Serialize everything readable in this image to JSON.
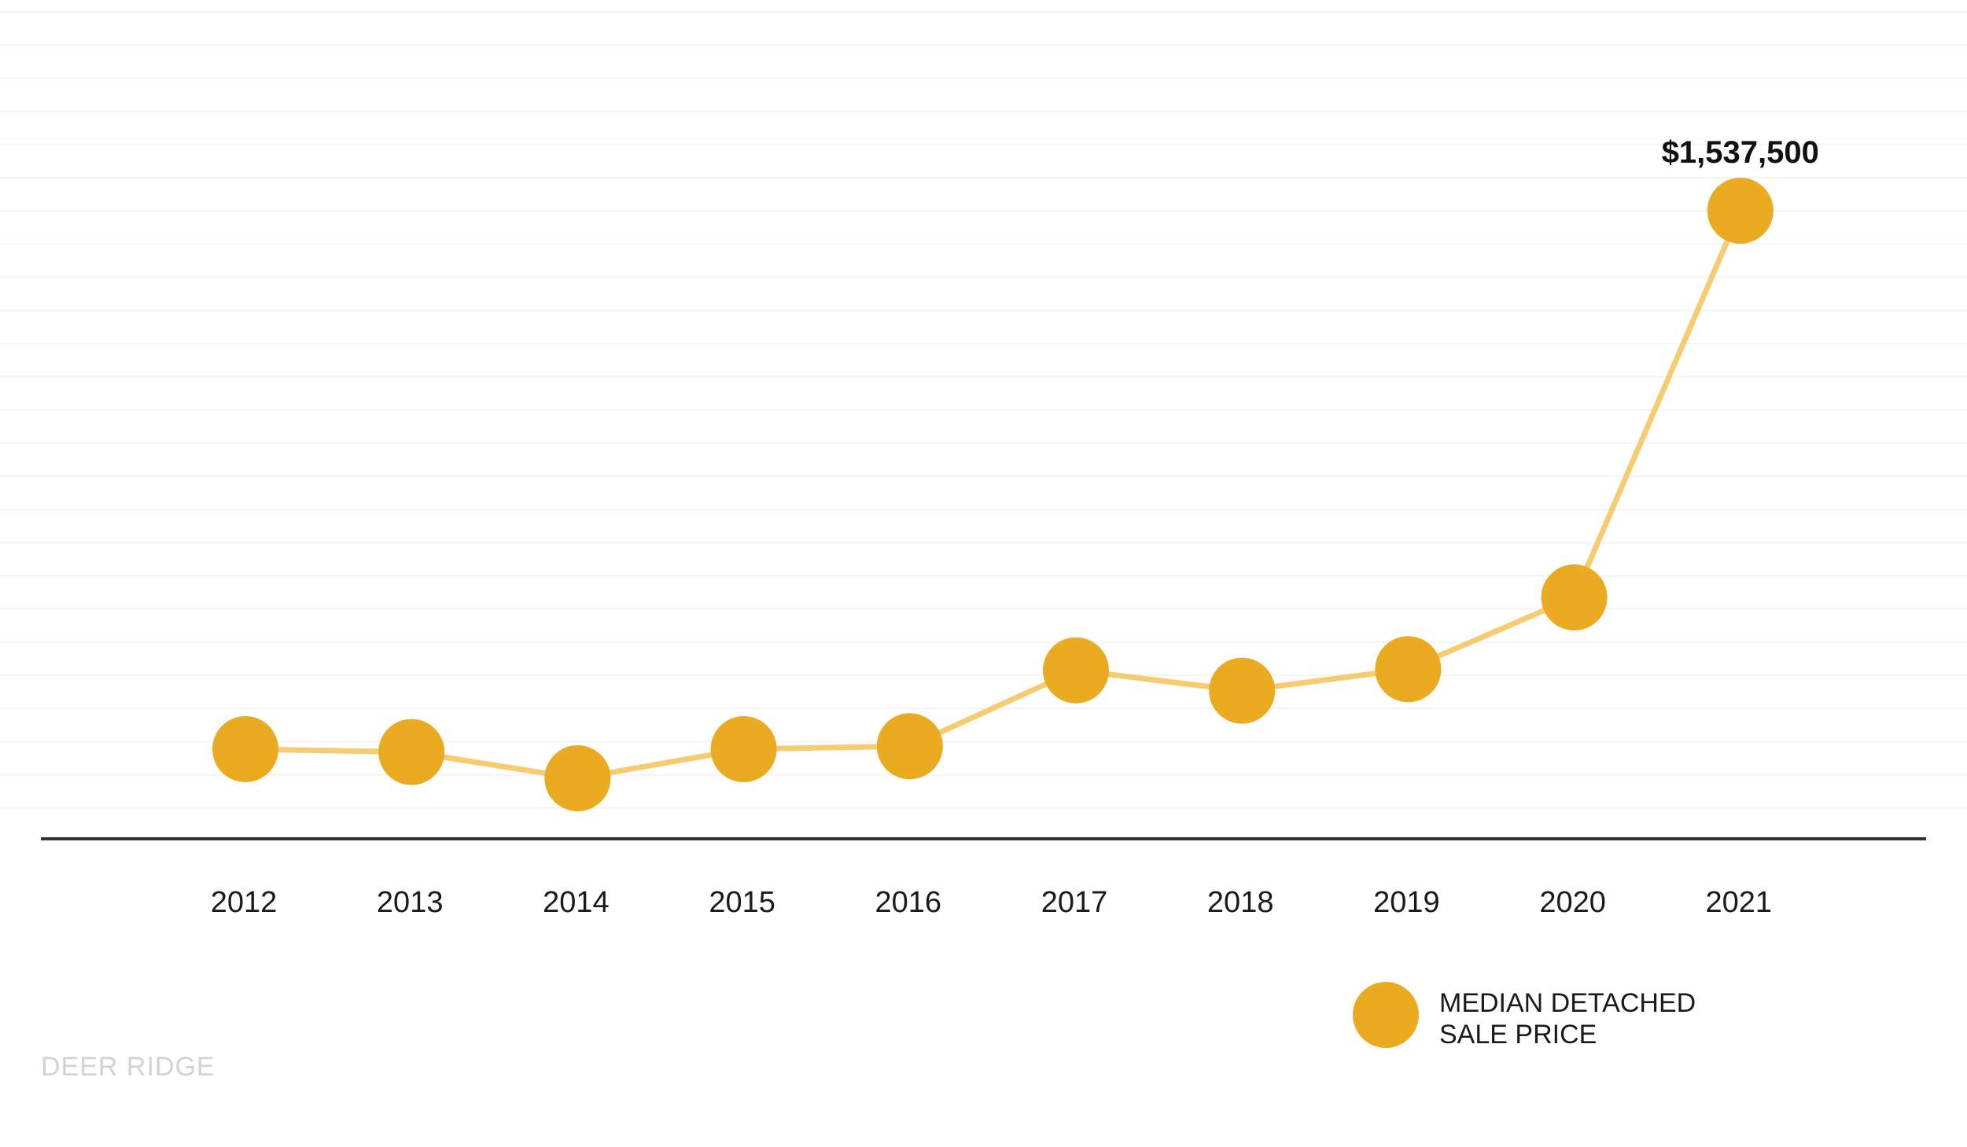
{
  "colors": {
    "marker": "#EBAB21",
    "line": "#F7CB70",
    "axis": "#333333",
    "grid": "#F4F4F4",
    "watermark": "#D2D2D2"
  },
  "watermark": "DEER RIDGE",
  "legend": {
    "line1": "MEDIAN DETACHED",
    "line2": "SALE PRICE",
    "icon": "circle-marker"
  },
  "chart_data": {
    "type": "line",
    "title": "",
    "xlabel": "",
    "ylabel": "",
    "grid": true,
    "legend_position": "bottom-right",
    "x": [
      "2012",
      "2013",
      "2014",
      "2015",
      "2016",
      "2017",
      "2018",
      "2019",
      "2020",
      "2021"
    ],
    "series": [
      {
        "name": "MEDIAN DETACHED SALE PRICE",
        "values": [
          615000,
          610000,
          565000,
          615000,
          620000,
          750000,
          715000,
          752000,
          875000,
          1537500
        ]
      }
    ],
    "annotations": [
      {
        "index": 9,
        "text": "$1,537,500"
      }
    ]
  }
}
